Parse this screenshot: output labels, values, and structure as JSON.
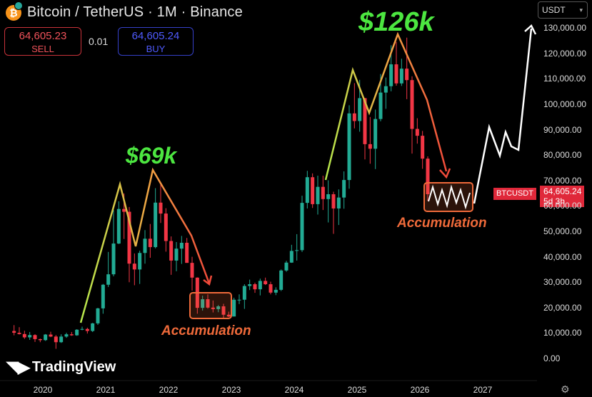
{
  "header": {
    "coin_icon": "bitcoin-icon",
    "title": "Bitcoin / TetherUS · 1M · Binance"
  },
  "trade": {
    "sell_price": "64,605.23",
    "sell_label": "SELL",
    "spread": "0.01",
    "buy_price": "64,605.24",
    "buy_label": "BUY"
  },
  "currency_selector": "USDT",
  "price_tag": {
    "symbol": "BTCUSDT",
    "price": "64,605.24",
    "countdown": "5d 3h"
  },
  "annotations": {
    "peak1_label": "$69k",
    "peak2_label": "$126k",
    "accumulation1": "Accumulation",
    "accumulation2": "Accumulation"
  },
  "branding": {
    "logo": "tradingview-logo",
    "name": "TradingView"
  },
  "colors": {
    "up": "#22ab94",
    "down": "#f23645",
    "peak_label": "#4ce640",
    "accumulation": "#ef6a3a",
    "price_tag": "#e0283a"
  },
  "chart_data": {
    "type": "candlestick",
    "timeframe": "1M",
    "y_ticks": [
      "0.00",
      "10,000.00",
      "20,000.00",
      "30,000.00",
      "40,000.00",
      "50,000.00",
      "60,000.00",
      "70,000.00",
      "80,000.00",
      "90,000.00",
      "100,000.00",
      "110,000.00",
      "120,000.00",
      "130,000.00"
    ],
    "x_ticks": [
      "2020",
      "2021",
      "2022",
      "2023",
      "2024",
      "2025",
      "2026",
      "2027"
    ],
    "ylim": [
      0,
      130000
    ],
    "last_price": 64605.24,
    "candles": [
      {
        "t": "2019-07",
        "o": 10800,
        "h": 13100,
        "l": 9100,
        "c": 10100
      },
      {
        "t": "2019-08",
        "o": 10100,
        "h": 12300,
        "l": 9400,
        "c": 9600
      },
      {
        "t": "2019-09",
        "o": 9600,
        "h": 10900,
        "l": 7700,
        "c": 8300
      },
      {
        "t": "2019-10",
        "o": 8300,
        "h": 10400,
        "l": 7300,
        "c": 9200
      },
      {
        "t": "2019-11",
        "o": 9200,
        "h": 9500,
        "l": 6500,
        "c": 7600
      },
      {
        "t": "2019-12",
        "o": 7600,
        "h": 7800,
        "l": 6400,
        "c": 7200
      },
      {
        "t": "2020-01",
        "o": 7200,
        "h": 9600,
        "l": 6900,
        "c": 9400
      },
      {
        "t": "2020-02",
        "o": 9400,
        "h": 10500,
        "l": 8400,
        "c": 8600
      },
      {
        "t": "2020-03",
        "o": 8600,
        "h": 9200,
        "l": 3800,
        "c": 6400
      },
      {
        "t": "2020-04",
        "o": 6400,
        "h": 9500,
        "l": 6100,
        "c": 8600
      },
      {
        "t": "2020-05",
        "o": 8600,
        "h": 10100,
        "l": 8100,
        "c": 9500
      },
      {
        "t": "2020-06",
        "o": 9500,
        "h": 10400,
        "l": 8900,
        "c": 9100
      },
      {
        "t": "2020-07",
        "o": 9100,
        "h": 11500,
        "l": 8900,
        "c": 11300
      },
      {
        "t": "2020-08",
        "o": 11300,
        "h": 12500,
        "l": 11100,
        "c": 11600
      },
      {
        "t": "2020-09",
        "o": 11600,
        "h": 12100,
        "l": 9800,
        "c": 10800
      },
      {
        "t": "2020-10",
        "o": 10800,
        "h": 14000,
        "l": 10400,
        "c": 13800
      },
      {
        "t": "2020-11",
        "o": 13800,
        "h": 19900,
        "l": 13200,
        "c": 19700
      },
      {
        "t": "2020-12",
        "o": 19700,
        "h": 29300,
        "l": 17600,
        "c": 29000
      },
      {
        "t": "2021-01",
        "o": 29000,
        "h": 41900,
        "l": 28100,
        "c": 33100
      },
      {
        "t": "2021-02",
        "o": 33100,
        "h": 58400,
        "l": 32300,
        "c": 45200
      },
      {
        "t": "2021-03",
        "o": 45200,
        "h": 61800,
        "l": 45000,
        "c": 58800
      },
      {
        "t": "2021-04",
        "o": 58800,
        "h": 64900,
        "l": 47000,
        "c": 57700
      },
      {
        "t": "2021-05",
        "o": 57700,
        "h": 59600,
        "l": 30000,
        "c": 37300
      },
      {
        "t": "2021-06",
        "o": 37300,
        "h": 41300,
        "l": 28800,
        "c": 35000
      },
      {
        "t": "2021-07",
        "o": 35000,
        "h": 42400,
        "l": 29300,
        "c": 41500
      },
      {
        "t": "2021-08",
        "o": 41500,
        "h": 50500,
        "l": 37300,
        "c": 47100
      },
      {
        "t": "2021-09",
        "o": 47100,
        "h": 52900,
        "l": 39600,
        "c": 43800
      },
      {
        "t": "2021-10",
        "o": 43800,
        "h": 67000,
        "l": 43300,
        "c": 61300
      },
      {
        "t": "2021-11",
        "o": 61300,
        "h": 69000,
        "l": 53300,
        "c": 57000
      },
      {
        "t": "2021-12",
        "o": 57000,
        "h": 59100,
        "l": 42000,
        "c": 46200
      },
      {
        "t": "2022-01",
        "o": 46200,
        "h": 48000,
        "l": 32900,
        "c": 38500
      },
      {
        "t": "2022-02",
        "o": 38500,
        "h": 45800,
        "l": 34300,
        "c": 43200
      },
      {
        "t": "2022-03",
        "o": 43200,
        "h": 48200,
        "l": 37200,
        "c": 45500
      },
      {
        "t": "2022-04",
        "o": 45500,
        "h": 47400,
        "l": 37600,
        "c": 37600
      },
      {
        "t": "2022-05",
        "o": 37600,
        "h": 40000,
        "l": 26700,
        "c": 31800
      },
      {
        "t": "2022-06",
        "o": 31800,
        "h": 31900,
        "l": 17600,
        "c": 19900
      },
      {
        "t": "2022-07",
        "o": 19900,
        "h": 24700,
        "l": 18800,
        "c": 23300
      },
      {
        "t": "2022-08",
        "o": 23300,
        "h": 25200,
        "l": 19600,
        "c": 20000
      },
      {
        "t": "2022-09",
        "o": 20000,
        "h": 22800,
        "l": 18100,
        "c": 19400
      },
      {
        "t": "2022-10",
        "o": 19400,
        "h": 21000,
        "l": 18200,
        "c": 20500
      },
      {
        "t": "2022-11",
        "o": 20500,
        "h": 21500,
        "l": 15500,
        "c": 17200
      },
      {
        "t": "2022-12",
        "o": 17200,
        "h": 18400,
        "l": 16300,
        "c": 16500
      },
      {
        "t": "2023-01",
        "o": 16500,
        "h": 23900,
        "l": 16500,
        "c": 23100
      },
      {
        "t": "2023-02",
        "o": 23100,
        "h": 25200,
        "l": 21400,
        "c": 23100
      },
      {
        "t": "2023-03",
        "o": 23100,
        "h": 29200,
        "l": 19500,
        "c": 28500
      },
      {
        "t": "2023-04",
        "o": 28500,
        "h": 31000,
        "l": 26900,
        "c": 29200
      },
      {
        "t": "2023-05",
        "o": 29200,
        "h": 29800,
        "l": 25800,
        "c": 27200
      },
      {
        "t": "2023-06",
        "o": 27200,
        "h": 31400,
        "l": 24800,
        "c": 30500
      },
      {
        "t": "2023-07",
        "o": 30500,
        "h": 31800,
        "l": 28900,
        "c": 29200
      },
      {
        "t": "2023-08",
        "o": 29200,
        "h": 30200,
        "l": 25200,
        "c": 25900
      },
      {
        "t": "2023-09",
        "o": 25900,
        "h": 28000,
        "l": 24900,
        "c": 27000
      },
      {
        "t": "2023-10",
        "o": 27000,
        "h": 35000,
        "l": 26500,
        "c": 34600
      },
      {
        "t": "2023-11",
        "o": 34600,
        "h": 38400,
        "l": 34100,
        "c": 37700
      },
      {
        "t": "2023-12",
        "o": 37700,
        "h": 44700,
        "l": 37600,
        "c": 42300
      },
      {
        "t": "2024-01",
        "o": 42300,
        "h": 48900,
        "l": 38500,
        "c": 42600
      },
      {
        "t": "2024-02",
        "o": 42600,
        "h": 64000,
        "l": 41900,
        "c": 61200
      },
      {
        "t": "2024-03",
        "o": 61200,
        "h": 73800,
        "l": 59000,
        "c": 71300
      },
      {
        "t": "2024-04",
        "o": 71300,
        "h": 72800,
        "l": 59200,
        "c": 60700
      },
      {
        "t": "2024-05",
        "o": 60700,
        "h": 71900,
        "l": 56600,
        "c": 67500
      },
      {
        "t": "2024-06",
        "o": 67500,
        "h": 71900,
        "l": 58400,
        "c": 62700
      },
      {
        "t": "2024-07",
        "o": 62700,
        "h": 70100,
        "l": 53500,
        "c": 64600
      },
      {
        "t": "2024-08",
        "o": 64600,
        "h": 65600,
        "l": 49000,
        "c": 59000
      },
      {
        "t": "2024-09",
        "o": 59000,
        "h": 66500,
        "l": 52500,
        "c": 63300
      },
      {
        "t": "2024-10",
        "o": 63300,
        "h": 73600,
        "l": 58900,
        "c": 70200
      },
      {
        "t": "2024-11",
        "o": 70200,
        "h": 99600,
        "l": 66800,
        "c": 96400
      },
      {
        "t": "2024-12",
        "o": 96400,
        "h": 108300,
        "l": 90500,
        "c": 93400
      },
      {
        "t": "2025-01",
        "o": 93400,
        "h": 109600,
        "l": 89200,
        "c": 102400
      },
      {
        "t": "2025-02",
        "o": 102400,
        "h": 102500,
        "l": 78300,
        "c": 84300
      },
      {
        "t": "2025-03",
        "o": 84300,
        "h": 95000,
        "l": 76600,
        "c": 82500
      },
      {
        "t": "2025-04",
        "o": 82500,
        "h": 97900,
        "l": 74500,
        "c": 94200
      },
      {
        "t": "2025-05",
        "o": 94200,
        "h": 111900,
        "l": 93300,
        "c": 104600
      },
      {
        "t": "2025-06",
        "o": 104600,
        "h": 110500,
        "l": 98200,
        "c": 107100
      },
      {
        "t": "2025-07",
        "o": 107100,
        "h": 123200,
        "l": 105100,
        "c": 115700
      },
      {
        "t": "2025-08",
        "o": 115700,
        "h": 124500,
        "l": 107300,
        "c": 108200
      },
      {
        "t": "2025-09",
        "o": 108200,
        "h": 117900,
        "l": 107200,
        "c": 114000
      },
      {
        "t": "2025-10",
        "o": 114000,
        "h": 126200,
        "l": 102000,
        "c": 109500
      },
      {
        "t": "2025-11",
        "o": 109500,
        "h": 111000,
        "l": 80600,
        "c": 90300
      },
      {
        "t": "2025-12",
        "o": 90300,
        "h": 94500,
        "l": 84500,
        "c": 87600
      },
      {
        "t": "2026-01",
        "o": 87600,
        "h": 89500,
        "l": 74600,
        "c": 78600
      },
      {
        "t": "2026-02",
        "o": 78600,
        "h": 79500,
        "l": 62000,
        "c": 64605
      }
    ]
  }
}
